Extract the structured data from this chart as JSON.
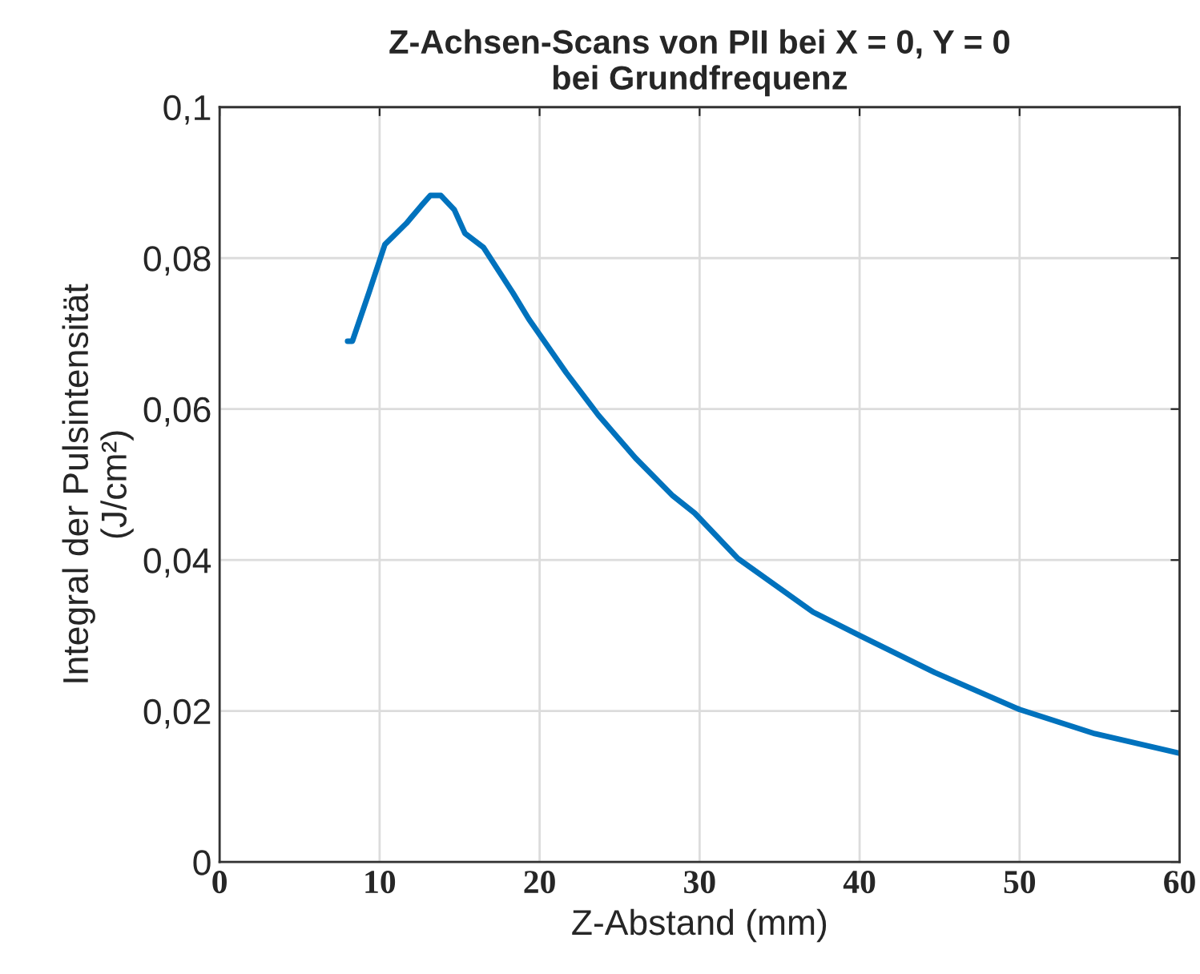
{
  "chart_data": {
    "type": "line",
    "title": "Z-Achsen-Scans von PII bei X = 0, Y = 0\nbei Grundfrequenz",
    "xlabel": "Z-Abstand (mm)",
    "ylabel": "Integral der Pulsintensität\n(J/cm²)",
    "series": [
      {
        "color": "#0072bd",
        "x": [
          8.0,
          8.3,
          9.33,
          10.33,
          11.67,
          12.67,
          13.17,
          13.83,
          14.67,
          15.33,
          16.5,
          18.33,
          19.33,
          21.67,
          23.67,
          26.0,
          28.33,
          29.7,
          32.4,
          37.1,
          40.0,
          44.7,
          50.0,
          54.7,
          60.0
        ],
        "values": [
          0.069,
          0.069,
          0.0754,
          0.0818,
          0.0846,
          0.0871,
          0.0883,
          0.0883,
          0.0864,
          0.0833,
          0.0814,
          0.0754,
          0.0719,
          0.0648,
          0.0592,
          0.0535,
          0.0485,
          0.0462,
          0.0402,
          0.0331,
          0.03,
          0.0251,
          0.0202,
          0.017,
          0.0144
        ]
      }
    ],
    "xlim": [
      0,
      60
    ],
    "xticks": [
      0,
      10,
      20,
      30,
      40,
      50,
      60
    ],
    "ylim": [
      0,
      0.1
    ],
    "yticks": [
      0,
      {
        "value": 0.02,
        "label": "0,02"
      },
      {
        "value": 0.04,
        "label": "0,04"
      },
      {
        "value": 0.06,
        "label": "0,06"
      },
      {
        "value": 0.08,
        "label": "0,08"
      },
      {
        "value": 0.1,
        "label": "0,1"
      }
    ],
    "grid": true,
    "marker": "none",
    "line_style": "solid"
  }
}
